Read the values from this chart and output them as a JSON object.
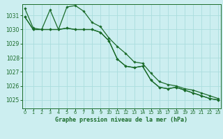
{
  "title": "Graphe pression niveau de la mer (hPa)",
  "background_color": "#cceef0",
  "grid_color": "#aadddd",
  "line_color": "#1a6b2a",
  "x_ticks": [
    0,
    1,
    2,
    3,
    4,
    5,
    6,
    7,
    8,
    9,
    10,
    11,
    12,
    13,
    14,
    15,
    16,
    17,
    18,
    19,
    20,
    21,
    22,
    23
  ],
  "y_ticks": [
    1025,
    1026,
    1027,
    1028,
    1029,
    1030,
    1031
  ],
  "ylim": [
    1024.4,
    1031.8
  ],
  "xlim": [
    -0.3,
    23.3
  ],
  "series": [
    [
      1031.5,
      1030.1,
      1030.0,
      1031.4,
      1030.0,
      1031.6,
      1031.7,
      1031.3,
      1030.5,
      1030.2,
      1029.4,
      1028.8,
      1028.3,
      1027.7,
      1027.6,
      1026.9,
      1026.3,
      1026.1,
      1026.0,
      1025.8,
      1025.7,
      1025.5,
      1025.3,
      1025.1
    ],
    [
      1030.9,
      1030.0,
      1030.0,
      1030.0,
      1030.0,
      1030.1,
      1030.0,
      1030.0,
      1030.0,
      1029.8,
      1029.2,
      1027.9,
      1027.4,
      1027.3,
      1027.4,
      1026.4,
      1025.9,
      1025.8,
      1025.9,
      1025.7,
      1025.5,
      1025.3,
      1025.1,
      1025.0
    ],
    [
      1030.9,
      1030.0,
      1030.0,
      1030.0,
      1030.0,
      1030.1,
      1030.0,
      1030.0,
      1030.0,
      1029.8,
      1029.2,
      1027.9,
      1027.4,
      1027.3,
      1027.4,
      1026.4,
      1025.9,
      1025.8,
      1025.9,
      1025.7,
      1025.5,
      1025.3,
      1025.1,
      1025.0
    ]
  ]
}
